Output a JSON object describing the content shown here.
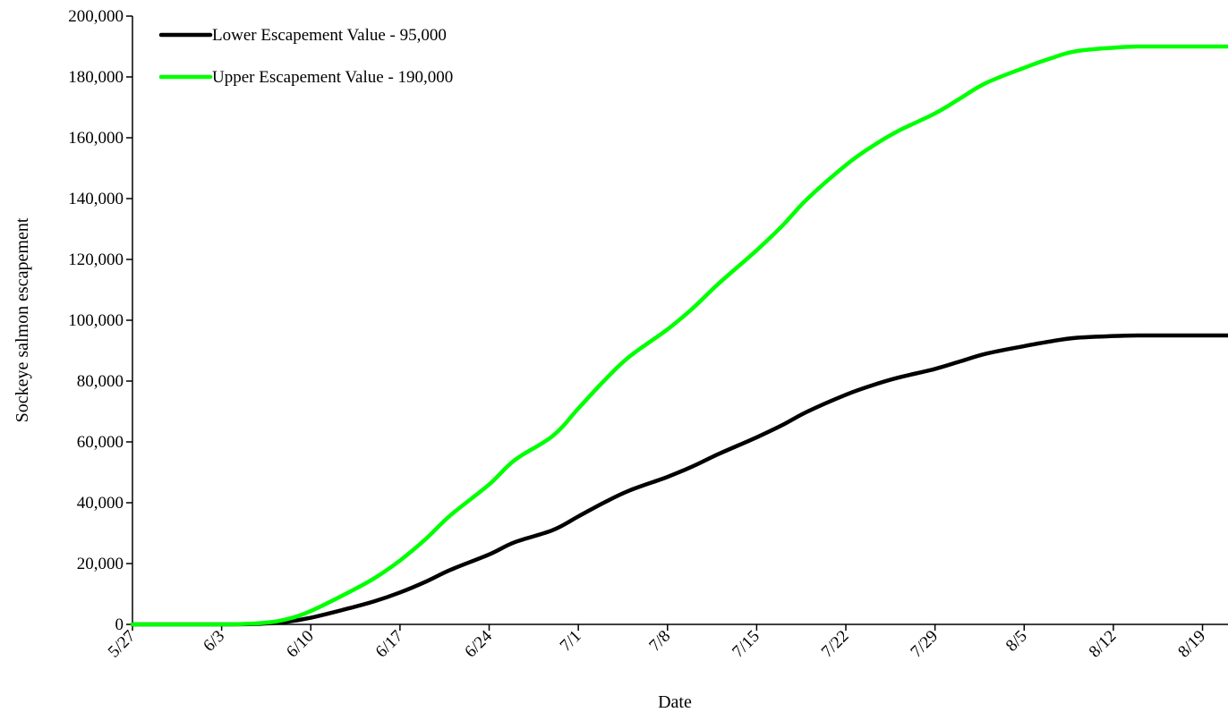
{
  "chart_data": {
    "type": "line",
    "title": "",
    "xlabel": "Date",
    "ylabel": "Sockeye salmon escapement",
    "ylim": [
      0,
      200000
    ],
    "y_ticks": [
      0,
      20000,
      40000,
      60000,
      80000,
      100000,
      120000,
      140000,
      160000,
      180000,
      200000
    ],
    "y_tick_labels": [
      "0",
      "20,000",
      "40,000",
      "60,000",
      "80,000",
      "100,000",
      "120,000",
      "140,000",
      "160,000",
      "180,000",
      "200,000"
    ],
    "x_tick_labels": [
      "5/27",
      "6/3",
      "6/10",
      "6/17",
      "6/24",
      "7/1",
      "7/8",
      "7/15",
      "7/22",
      "7/29",
      "8/5",
      "8/12",
      "8/19"
    ],
    "x_tick_dates": [
      "2000-05-27",
      "2000-06-03",
      "2000-06-10",
      "2000-06-17",
      "2000-06-24",
      "2000-07-01",
      "2000-07-08",
      "2000-07-15",
      "2000-07-22",
      "2000-07-29",
      "2000-08-05",
      "2000-08-12",
      "2000-08-19"
    ],
    "xlim": [
      "2000-05-27",
      "2000-08-21"
    ],
    "grid": false,
    "legend_position": "top-left",
    "x": [
      "2000-05-27",
      "2000-06-03",
      "2000-06-06",
      "2000-06-08",
      "2000-06-10",
      "2000-06-13",
      "2000-06-15",
      "2000-06-17",
      "2000-06-19",
      "2000-06-21",
      "2000-06-24",
      "2000-06-26",
      "2000-06-29",
      "2000-07-01",
      "2000-07-03",
      "2000-07-05",
      "2000-07-08",
      "2000-07-10",
      "2000-07-12",
      "2000-07-15",
      "2000-07-17",
      "2000-07-19",
      "2000-07-22",
      "2000-07-24",
      "2000-07-26",
      "2000-07-29",
      "2000-07-31",
      "2000-08-02",
      "2000-08-05",
      "2000-08-07",
      "2000-08-09",
      "2000-08-12",
      "2000-08-14",
      "2000-08-16",
      "2000-08-21"
    ],
    "series": [
      {
        "name": "Lower Escapement Value - 95,000",
        "color": "#000000",
        "values": [
          0,
          0,
          200,
          800,
          2200,
          5300,
          7600,
          10500,
          14000,
          18000,
          23000,
          27000,
          31000,
          35500,
          40000,
          44000,
          48500,
          52000,
          56000,
          61500,
          65500,
          70000,
          75500,
          78500,
          81000,
          84000,
          86500,
          89000,
          91500,
          93000,
          94200,
          94800,
          95000,
          95000,
          95000
        ]
      },
      {
        "name": "Upper Escapement Value - 190,000",
        "color": "#00FF00",
        "values": [
          0,
          0,
          400,
          1600,
          4400,
          10600,
          15200,
          21000,
          28000,
          36000,
          46000,
          54000,
          62000,
          71000,
          80000,
          88000,
          97000,
          104000,
          112000,
          123000,
          131000,
          140000,
          151000,
          157000,
          162000,
          168000,
          173000,
          178000,
          183000,
          186000,
          188400,
          189600,
          190000,
          190000,
          190000
        ]
      }
    ]
  }
}
